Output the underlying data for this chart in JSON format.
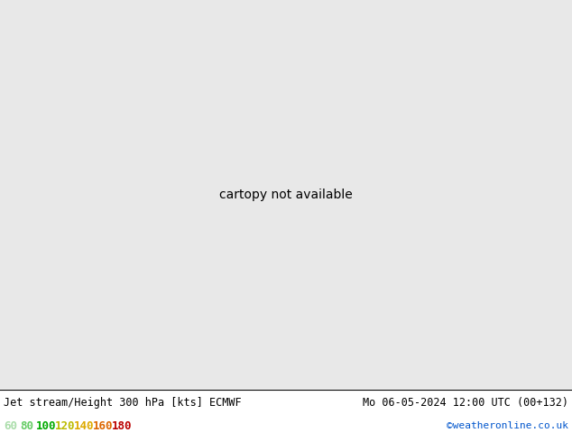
{
  "title_left": "Jet stream/Height 300 hPa [kts] ECMWF",
  "title_right": "Mo 06-05-2024 12:00 UTC (00+132)",
  "credit": "©weatheronline.co.uk",
  "legend_values": [
    "60",
    "80",
    "100",
    "120",
    "140",
    "160",
    "180"
  ],
  "legend_colors_text": [
    "#aaddaa",
    "#66cc66",
    "#00aa00",
    "#bbbb00",
    "#ddaa00",
    "#dd6600",
    "#bb0000"
  ],
  "background_color": "#e8e8e8",
  "land_color": "#c8c8c8",
  "ocean_color": "#e8e8e8",
  "fig_width": 6.34,
  "fig_height": 4.9,
  "dpi": 100,
  "extent": [
    90,
    200,
    -65,
    10
  ],
  "jet_bands": [
    {
      "color": "#c8f0b0",
      "alpha": 0.95,
      "zorder": 2
    },
    {
      "color": "#90d870",
      "alpha": 0.95,
      "zorder": 3
    },
    {
      "color": "#50b840",
      "alpha": 0.95,
      "zorder": 4
    },
    {
      "color": "#20a020",
      "alpha": 0.95,
      "zorder": 5
    },
    {
      "color": "#008800",
      "alpha": 0.95,
      "zorder": 6
    }
  ]
}
